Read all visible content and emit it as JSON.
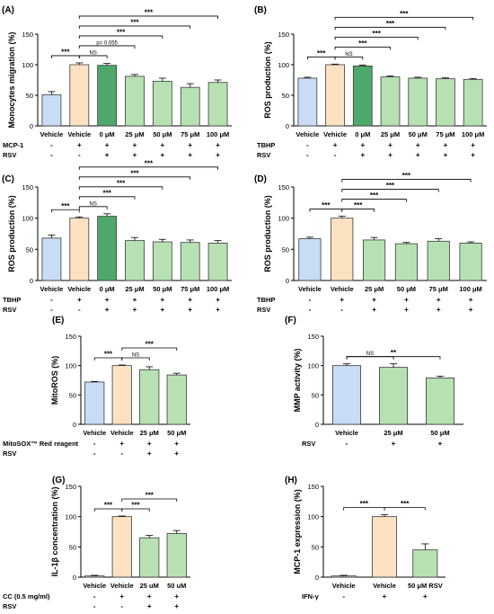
{
  "colors": {
    "vehicle_blue": "#c9dcf5",
    "vehicle_orange": "#fde2c2",
    "rsv_dark_green": "#4fa86b",
    "rsv_light_green": "#b7e1b3",
    "outline": "#3a3a3a"
  },
  "chart_data": [
    {
      "panel": "(A)",
      "type": "bar",
      "ylabel": "Monocytes migration (%)",
      "ylim": [
        0,
        150
      ],
      "yticks": [
        0,
        50,
        100,
        150
      ],
      "categories": [
        "Vehicle",
        "Vehicle",
        "0 μM",
        "25 μM",
        "50 μM",
        "75 μM",
        "100 μM"
      ],
      "values": [
        51,
        100,
        99,
        81,
        73,
        63,
        71
      ],
      "errors": [
        5,
        3,
        3,
        3,
        5,
        6,
        4
      ],
      "colors": [
        "vehicle_blue",
        "vehicle_orange",
        "rsv_dark_green",
        "rsv_light_green",
        "rsv_light_green",
        "rsv_light_green",
        "rsv_light_green"
      ],
      "conditions": [
        {
          "label": "MCP-1",
          "signs": [
            "-",
            "+",
            "+",
            "+",
            "+",
            "+",
            "+"
          ]
        },
        {
          "label": "RSV",
          "signs": [
            "-",
            "-",
            "+",
            "+",
            "+",
            "+",
            "+"
          ]
        }
      ],
      "brackets": [
        {
          "from": 0,
          "to": 1,
          "label": "***"
        },
        {
          "from": 1,
          "to": 2,
          "label": "NS"
        },
        {
          "from": 1,
          "to": 3,
          "label": "p= 0.055"
        },
        {
          "from": 1,
          "to": 4,
          "label": "***"
        },
        {
          "from": 1,
          "to": 5,
          "label": "***"
        },
        {
          "from": 1,
          "to": 6,
          "label": "***"
        }
      ]
    },
    {
      "panel": "(B)",
      "type": "bar",
      "ylabel": "ROS production (%)",
      "ylim": [
        0,
        150
      ],
      "yticks": [
        0,
        50,
        100,
        150
      ],
      "categories": [
        "Vehicle",
        "Vehicle",
        "0 μM",
        "25 μM",
        "50 μM",
        "75 μM",
        "100 μM"
      ],
      "values": [
        78,
        100,
        98,
        80,
        78,
        77,
        76
      ],
      "errors": [
        1.5,
        1,
        1.5,
        1.5,
        1.5,
        1.5,
        1.5
      ],
      "colors": [
        "vehicle_blue",
        "vehicle_orange",
        "rsv_dark_green",
        "rsv_light_green",
        "rsv_light_green",
        "rsv_light_green",
        "rsv_light_green"
      ],
      "conditions": [
        {
          "label": "TBHP",
          "signs": [
            "-",
            "+",
            "+",
            "+",
            "+",
            "+",
            "+"
          ]
        },
        {
          "label": "RSV",
          "signs": [
            "-",
            "-",
            "+",
            "+",
            "+",
            "+",
            "+"
          ]
        }
      ],
      "brackets": [
        {
          "from": 0,
          "to": 1,
          "label": "***"
        },
        {
          "from": 1,
          "to": 2,
          "label": "NS"
        },
        {
          "from": 1,
          "to": 3,
          "label": "***"
        },
        {
          "from": 1,
          "to": 4,
          "label": "***"
        },
        {
          "from": 1,
          "to": 5,
          "label": "***"
        },
        {
          "from": 1,
          "to": 6,
          "label": "***"
        }
      ]
    },
    {
      "panel": "(C)",
      "type": "bar",
      "ylabel": "ROS production (%)",
      "ylim": [
        0,
        150
      ],
      "yticks": [
        0,
        50,
        100,
        150
      ],
      "categories": [
        "Vehicle",
        "Vehicle",
        "0 μM",
        "25 μM",
        "50 μM",
        "75 μM",
        "100 μM"
      ],
      "values": [
        68,
        100,
        103,
        64,
        62,
        61,
        60
      ],
      "errors": [
        5,
        2,
        4,
        5,
        4,
        4,
        4
      ],
      "colors": [
        "vehicle_blue",
        "vehicle_orange",
        "rsv_dark_green",
        "rsv_light_green",
        "rsv_light_green",
        "rsv_light_green",
        "rsv_light_green"
      ],
      "conditions": [
        {
          "label": "TBHP",
          "signs": [
            "-",
            "+",
            "+",
            "+",
            "+",
            "+",
            "+"
          ]
        },
        {
          "label": "RSV",
          "signs": [
            "-",
            "-",
            "+",
            "+",
            "+",
            "+",
            "+"
          ]
        }
      ],
      "brackets": [
        {
          "from": 0,
          "to": 1,
          "label": "***"
        },
        {
          "from": 1,
          "to": 2,
          "label": "NS"
        },
        {
          "from": 1,
          "to": 3,
          "label": "***"
        },
        {
          "from": 1,
          "to": 4,
          "label": "***"
        },
        {
          "from": 1,
          "to": 5,
          "label": "***"
        },
        {
          "from": 1,
          "to": 6,
          "label": "***"
        }
      ]
    },
    {
      "panel": "(D)",
      "type": "bar",
      "ylabel": "ROS production (%)",
      "ylim": [
        0,
        150
      ],
      "yticks": [
        0,
        50,
        100,
        150
      ],
      "categories": [
        "Vehicle",
        "Vehicle",
        "25 μM",
        "50 μM",
        "75 μM",
        "100 μM"
      ],
      "values": [
        67,
        100,
        65,
        59,
        63,
        60
      ],
      "errors": [
        2.5,
        3,
        4,
        2,
        4,
        2
      ],
      "colors": [
        "vehicle_blue",
        "vehicle_orange",
        "rsv_light_green",
        "rsv_light_green",
        "rsv_light_green",
        "rsv_light_green"
      ],
      "conditions": [
        {
          "label": "TBHP",
          "signs": [
            "-",
            "+",
            "+",
            "+",
            "+",
            "+"
          ]
        },
        {
          "label": "RSV",
          "signs": [
            "-",
            "-",
            "+",
            "+",
            "+",
            "+"
          ]
        }
      ],
      "brackets": [
        {
          "from": 0,
          "to": 1,
          "label": "***"
        },
        {
          "from": 1,
          "to": 2,
          "label": "***"
        },
        {
          "from": 1,
          "to": 3,
          "label": "***"
        },
        {
          "from": 1,
          "to": 4,
          "label": "***"
        },
        {
          "from": 1,
          "to": 5,
          "label": "***"
        }
      ]
    },
    {
      "panel": "(E)",
      "type": "bar",
      "ylabel": "MitoROS (%)",
      "ylim": [
        0,
        150
      ],
      "yticks": [
        0,
        50,
        100,
        150
      ],
      "categories": [
        "Vehicle",
        "Vehicle",
        "25 μM",
        "50 μM"
      ],
      "values": [
        72,
        100,
        93,
        84
      ],
      "errors": [
        1,
        1,
        5,
        3
      ],
      "colors": [
        "vehicle_blue",
        "vehicle_orange",
        "rsv_light_green",
        "rsv_light_green"
      ],
      "conditions": [
        {
          "label": "MitoSOX™ Red reagent",
          "signs": [
            "-",
            "+",
            "+",
            "+"
          ]
        },
        {
          "label": "RSV",
          "signs": [
            "-",
            "-",
            "+",
            "+"
          ]
        }
      ],
      "brackets": [
        {
          "from": 0,
          "to": 1,
          "label": "***"
        },
        {
          "from": 1,
          "to": 2,
          "label": "NS"
        },
        {
          "from": 1,
          "to": 3,
          "label": "***"
        }
      ]
    },
    {
      "panel": "(F)",
      "type": "bar",
      "ylabel": "MMP activity (%)",
      "ylim": [
        0,
        150
      ],
      "yticks": [
        0,
        50,
        100,
        150
      ],
      "categories": [
        "Vehicle",
        "25 μM",
        "50 μM"
      ],
      "values": [
        100,
        97,
        79
      ],
      "errors": [
        3,
        6,
        3
      ],
      "colors": [
        "vehicle_blue",
        "rsv_light_green",
        "rsv_light_green"
      ],
      "conditions": [
        {
          "label": "RSV",
          "signs": [
            "-",
            "+",
            "+"
          ]
        }
      ],
      "brackets": [
        {
          "from": 0,
          "to": 1,
          "label": "NS"
        },
        {
          "from": 0,
          "to": 2,
          "label": "**"
        }
      ]
    },
    {
      "panel": "(G)",
      "type": "bar",
      "ylabel": "IL-1β concentration (%)",
      "ylim": [
        0,
        150
      ],
      "yticks": [
        0,
        50,
        100,
        150
      ],
      "categories": [
        "Vehicle",
        "Vehicle",
        "25 uM",
        "50 uM"
      ],
      "values": [
        2,
        100,
        65,
        72
      ],
      "errors": [
        1,
        1,
        4,
        5
      ],
      "colors": [
        "vehicle_blue",
        "vehicle_orange",
        "rsv_light_green",
        "rsv_light_green"
      ],
      "conditions": [
        {
          "label": "CC (0.5 mg/ml)",
          "signs": [
            "-",
            "+",
            "+",
            "+"
          ]
        },
        {
          "label": "RSV",
          "signs": [
            "-",
            "-",
            "+",
            "+"
          ]
        }
      ],
      "brackets": [
        {
          "from": 0,
          "to": 1,
          "label": "***"
        },
        {
          "from": 1,
          "to": 2,
          "label": "***"
        },
        {
          "from": 1,
          "to": 3,
          "label": "***"
        }
      ]
    },
    {
      "panel": "(H)",
      "type": "bar",
      "ylabel": "MCP-1 expression (%)",
      "ylim": [
        0,
        150
      ],
      "yticks": [
        0,
        50,
        100,
        150
      ],
      "categories": [
        "Vehicle",
        "Vehicle",
        "50 μM RSV"
      ],
      "values": [
        2,
        100,
        45
      ],
      "errors": [
        1,
        3,
        10
      ],
      "colors": [
        "vehicle_blue",
        "vehicle_orange",
        "rsv_light_green"
      ],
      "conditions": [
        {
          "label": "IFN-γ",
          "signs": [
            "-",
            "+",
            "+"
          ]
        }
      ],
      "brackets": [
        {
          "from": 0,
          "to": 1,
          "label": "***"
        },
        {
          "from": 1,
          "to": 2,
          "label": "***"
        }
      ]
    }
  ]
}
